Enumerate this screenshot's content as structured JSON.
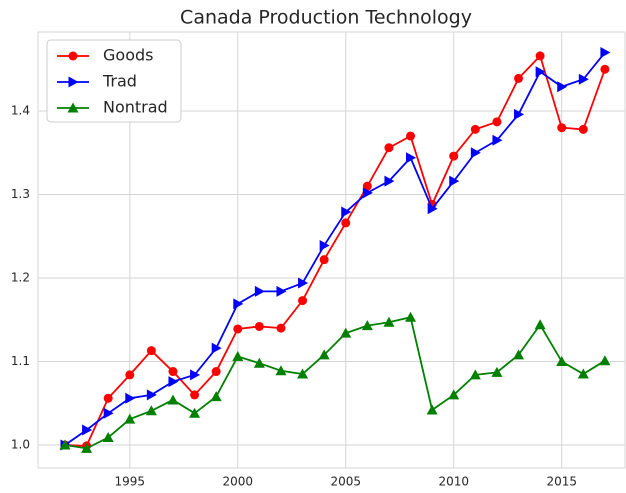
{
  "chart_data": {
    "type": "line",
    "title": "Canada Production Technology",
    "x": [
      1992,
      1993,
      1994,
      1995,
      1996,
      1997,
      1998,
      1999,
      2000,
      2001,
      2002,
      2003,
      2004,
      2005,
      2006,
      2007,
      2008,
      2009,
      2010,
      2011,
      2012,
      2013,
      2014,
      2015,
      2016,
      2017
    ],
    "series": [
      {
        "name": "Goods",
        "color": "#ff0000",
        "marker": "circle",
        "values": [
          1.0,
          0.999,
          1.056,
          1.084,
          1.113,
          1.088,
          1.06,
          1.088,
          1.139,
          1.142,
          1.14,
          1.173,
          1.222,
          1.266,
          1.31,
          1.356,
          1.37,
          1.288,
          1.346,
          1.378,
          1.387,
          1.439,
          1.466,
          1.38,
          1.378,
          1.45
        ]
      },
      {
        "name": "Trad",
        "color": "#0000ff",
        "marker": "triangle-right",
        "values": [
          1.0,
          1.018,
          1.038,
          1.056,
          1.06,
          1.076,
          1.084,
          1.116,
          1.169,
          1.184,
          1.184,
          1.194,
          1.239,
          1.279,
          1.302,
          1.316,
          1.344,
          1.283,
          1.316,
          1.35,
          1.365,
          1.396,
          1.447,
          1.429,
          1.438,
          1.47
        ]
      },
      {
        "name": "Nontrad",
        "color": "#008000",
        "marker": "triangle-up",
        "values": [
          1.0,
          0.996,
          1.009,
          1.031,
          1.041,
          1.054,
          1.038,
          1.058,
          1.106,
          1.098,
          1.089,
          1.085,
          1.108,
          1.134,
          1.143,
          1.147,
          1.153,
          1.042,
          1.06,
          1.084,
          1.087,
          1.108,
          1.144,
          1.1,
          1.085,
          1.101
        ]
      }
    ],
    "xlim": [
      1990.75,
      2017.93
    ],
    "xticks": [
      1995,
      2000,
      2005,
      2010,
      2015
    ],
    "ylim": [
      0.9725,
      1.4946
    ],
    "yticks": [
      {
        "value": 1.0,
        "label": "1.0"
      },
      1.1,
      1.2,
      1.3,
      1.4
    ],
    "grid": true,
    "legend": "upper-left"
  }
}
